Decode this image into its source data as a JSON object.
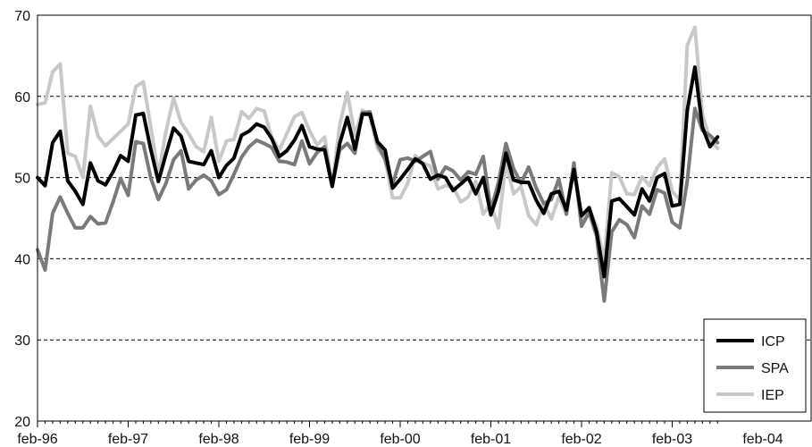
{
  "chart_data": {
    "type": "line",
    "title": "",
    "xlabel": "",
    "ylabel": "",
    "ylim": [
      20,
      70
    ],
    "yticks": [
      20,
      30,
      40,
      50,
      60,
      70
    ],
    "x_start": "feb-96",
    "x_tick_labels": [
      "feb-96",
      "feb-97",
      "feb-98",
      "feb-99",
      "feb-00",
      "feb-01",
      "feb-02",
      "feb-03",
      "feb-04"
    ],
    "grid": "horizontal dashed",
    "legend_position": "bottom-right",
    "series": [
      {
        "name": "ICP",
        "color": "#000000",
        "values": [
          50.0,
          49.0,
          54.3,
          55.7,
          49.6,
          48.3,
          46.7,
          51.8,
          49.6,
          49.1,
          50.7,
          52.7,
          52.0,
          57.7,
          57.9,
          53.4,
          49.5,
          52.9,
          56.1,
          55.1,
          52.0,
          51.8,
          51.6,
          53.3,
          50.0,
          51.5,
          52.4,
          55.2,
          55.7,
          56.6,
          56.2,
          54.8,
          52.6,
          53.3,
          54.6,
          56.4,
          53.8,
          53.5,
          53.4,
          48.9,
          54.2,
          57.4,
          53.5,
          57.8,
          57.8,
          54.4,
          53.4,
          48.7,
          49.8,
          51.0,
          52.3,
          51.7,
          49.8,
          50.3,
          50.0,
          48.4,
          49.2,
          50.0,
          48.0,
          50.0,
          45.4,
          48.3,
          53.0,
          49.7,
          49.4,
          49.4,
          47.2,
          45.6,
          48.0,
          48.3,
          46.0,
          51.0,
          45.3,
          46.3,
          43.3,
          37.8,
          47.1,
          47.4,
          46.4,
          45.4,
          48.6,
          47.1,
          50.0,
          50.5,
          46.5,
          46.7,
          58.3,
          63.6,
          56.2,
          53.8,
          55.0
        ]
      },
      {
        "name": "SPA",
        "color": "#7a7a7a",
        "values": [
          41.1,
          38.6,
          45.6,
          47.6,
          45.6,
          43.8,
          43.8,
          45.2,
          44.3,
          44.4,
          47.0,
          49.9,
          47.8,
          54.4,
          54.2,
          49.9,
          47.3,
          49.3,
          52.2,
          53.3,
          48.6,
          49.7,
          50.3,
          49.6,
          47.9,
          48.5,
          50.4,
          52.5,
          53.8,
          54.6,
          54.2,
          53.7,
          52.0,
          51.9,
          51.6,
          54.5,
          51.7,
          53.1,
          53.8,
          49.0,
          53.4,
          54.2,
          53.0,
          58.0,
          58.1,
          54.2,
          52.2,
          49.2,
          52.2,
          52.4,
          52.0,
          52.6,
          53.2,
          49.8,
          51.3,
          50.8,
          49.7,
          50.7,
          50.4,
          52.6,
          46.0,
          49.4,
          54.2,
          51.1,
          49.3,
          51.3,
          48.7,
          46.8,
          47.3,
          49.8,
          45.5,
          51.8,
          44.0,
          45.7,
          42.8,
          34.8,
          43.3,
          44.8,
          44.2,
          42.6,
          46.5,
          45.5,
          48.5,
          48.1,
          44.5,
          43.8,
          49.6,
          58.5,
          55.8,
          55.2,
          54.3
        ]
      },
      {
        "name": "IEP",
        "color": "#c8c8c8",
        "values": [
          59.0,
          59.2,
          63.0,
          64.0,
          53.0,
          52.6,
          50.0,
          58.8,
          55.1,
          53.9,
          54.8,
          55.7,
          56.6,
          61.2,
          61.8,
          56.2,
          50.3,
          55.7,
          59.8,
          56.8,
          55.4,
          53.8,
          53.2,
          57.4,
          52.0,
          54.5,
          54.7,
          58.1,
          57.3,
          58.5,
          58.2,
          54.9,
          53.4,
          55.4,
          57.5,
          58.0,
          55.8,
          54.0,
          55.0,
          49.0,
          56.5,
          60.5,
          55.2,
          58.3,
          57.5,
          53.6,
          52.3,
          47.5,
          47.5,
          49.3,
          52.7,
          51.8,
          51.4,
          48.6,
          49.0,
          48.9,
          47.0,
          47.6,
          49.5,
          45.5,
          46.8,
          43.8,
          52.0,
          48.0,
          48.9,
          45.3,
          44.2,
          46.8,
          44.9,
          47.6,
          45.5,
          51.7,
          44.7,
          46.2,
          44.0,
          39.8,
          50.6,
          50.1,
          48.0,
          47.9,
          50.1,
          49.0,
          51.2,
          52.3,
          48.3,
          47.2,
          66.3,
          68.5,
          57.8,
          54.6,
          53.6
        ]
      }
    ]
  }
}
